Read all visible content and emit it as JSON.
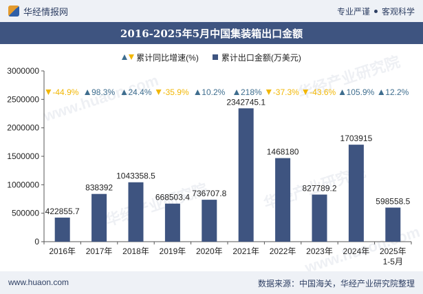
{
  "header": {
    "brand": "华经情报网",
    "tag1": "专业严谨",
    "tag2": "客观科学"
  },
  "title": "2016-2025年5月中国集装箱出口金额",
  "legend": {
    "growth": "累计同比增速(%)",
    "amount": "累计出口金额(万美元)"
  },
  "footer": {
    "website": "www.huaon.com",
    "source": "数据来源：中国海关，华经产业研究院整理"
  },
  "colors": {
    "bar": "#3e5480",
    "up": "#3e6d8e",
    "down": "#f2b705",
    "header_bg": "#eef1f6"
  },
  "chart_data": {
    "type": "bar",
    "categories": [
      "2016年",
      "2017年",
      "2018年",
      "2019年",
      "2020年",
      "2021年",
      "2022年",
      "2023年",
      "2024年",
      "2025年\n1-5月"
    ],
    "series": [
      {
        "name": "累计出口金额(万美元)",
        "values": [
          422855.7,
          838392,
          1043358.5,
          668503.4,
          736707.8,
          2342745.1,
          1468180,
          827789.2,
          1703915,
          598558.5
        ],
        "labels": [
          "422855.7",
          "838392",
          "1043358.5",
          "668503.4",
          "736707.8",
          "2342745.1",
          "1468180",
          "827789.2",
          "1703915",
          "598558.5"
        ]
      },
      {
        "name": "累计同比增速(%)",
        "values": [
          -44.9,
          98.3,
          24.4,
          -35.9,
          10.2,
          218,
          -37.3,
          -43.6,
          105.9,
          12.2
        ],
        "labels": [
          "-44.9%",
          "98.3%",
          "24.4%",
          "-35.9%",
          "10.2%",
          "218%",
          "-37.3%",
          "-43.6%",
          "105.9%",
          "12.2%"
        ]
      }
    ],
    "yticks": [
      "0",
      "500000",
      "1000000",
      "1500000",
      "2000000",
      "2500000",
      "3000000"
    ],
    "ylim": [
      0,
      3000000
    ],
    "grid": false,
    "legend_position": "top-center"
  }
}
